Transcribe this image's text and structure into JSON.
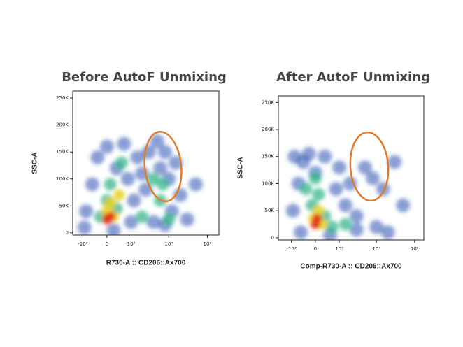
{
  "chart_data": [
    {
      "type": "scatter",
      "title": "Before AutoF Unmixing",
      "xlabel": "R730-A :: CD206::Ax700",
      "ylabel": "SSC-A",
      "xscale": "biexponential",
      "xlim": [
        -1900,
        200000
      ],
      "ylim": [
        -4000,
        263000
      ],
      "xticks": [
        {
          "value": -1000,
          "label": "-10³"
        },
        0,
        {
          "value": 1000,
          "label": "10³"
        },
        {
          "value": 10000,
          "label": "10⁴"
        },
        {
          "value": 100000,
          "label": "10⁵"
        }
      ],
      "yticks": [
        0,
        {
          "value": 50000,
          "label": "50K"
        },
        {
          "value": 100000,
          "label": "100K"
        },
        {
          "value": 150000,
          "label": "150K"
        },
        {
          "value": 200000,
          "label": "200K"
        },
        {
          "value": 250000,
          "label": "250K"
        }
      ],
      "gate_color": "#e07b2e",
      "series": [
        {
          "color": "#2a4fb0",
          "x": [
            -800,
            -500,
            -300,
            0,
            300,
            600,
            800,
            1500,
            1200,
            2500,
            3000,
            5000,
            6000,
            8000,
            10000,
            15000,
            20000,
            12000,
            30000,
            4000,
            8000,
            -900,
            200,
            50000,
            2000,
            1000
          ],
          "y": [
            40000,
            90000,
            140000,
            160000,
            120000,
            165000,
            100000,
            140000,
            60000,
            80000,
            150000,
            170000,
            120000,
            150000,
            100000,
            130000,
            70000,
            40000,
            25000,
            20000,
            15000,
            10000,
            5000,
            90000,
            110000,
            20000
          ]
        },
        {
          "color": "#35b58a",
          "x": [
            0,
            100,
            300,
            500,
            4000,
            7000,
            2000,
            6000,
            10000,
            -200
          ],
          "y": [
            60000,
            90000,
            45000,
            130000,
            100000,
            90000,
            30000,
            60000,
            25000,
            30000
          ]
        },
        {
          "color": "#e8d21e",
          "x": [
            0,
            100,
            200,
            400
          ],
          "y": [
            40000,
            55000,
            30000,
            70000
          ]
        },
        {
          "color": "#e33a1f",
          "x": [
            0,
            100
          ],
          "y": [
            25000,
            30000
          ]
        }
      ]
    },
    {
      "type": "scatter",
      "title": "After AutoF Unmixing",
      "xlabel": "Comp-R730-A :: CD206::Ax700",
      "ylabel": "SSC-A",
      "xscale": "biexponential",
      "xlim": [
        -2300,
        175000
      ],
      "ylim": [
        -4000,
        262000
      ],
      "xticks": [
        {
          "value": -1000,
          "label": "-10³"
        },
        0,
        {
          "value": 1000,
          "label": "10³"
        },
        {
          "value": 10000,
          "label": "10⁴"
        },
        {
          "value": 100000,
          "label": "10⁵"
        }
      ],
      "yticks": [
        0,
        {
          "value": 50000,
          "label": "50K"
        },
        {
          "value": 100000,
          "label": "100K"
        },
        {
          "value": 150000,
          "label": "150K"
        },
        {
          "value": 200000,
          "label": "200K"
        },
        {
          "value": 250000,
          "label": "250K"
        }
      ],
      "gate_color": "#e07b2e",
      "series": [
        {
          "color": "#2a4fb0",
          "x": [
            -900,
            -600,
            -400,
            -200,
            0,
            300,
            800,
            1500,
            3000,
            5000,
            8000,
            15000,
            30000,
            50000,
            10000,
            3000,
            20000,
            -500,
            500,
            2000,
            1000,
            -800
          ],
          "y": [
            50000,
            100000,
            140000,
            155000,
            120000,
            150000,
            90000,
            60000,
            40000,
            130000,
            110000,
            90000,
            140000,
            60000,
            20000,
            15000,
            10000,
            10000,
            5000,
            100000,
            130000,
            150000
          ]
        },
        {
          "color": "#35b58a",
          "x": [
            -100,
            100,
            300,
            -300,
            600,
            1500,
            0
          ],
          "y": [
            60000,
            80000,
            40000,
            90000,
            20000,
            25000,
            110000
          ]
        },
        {
          "color": "#e8d21e",
          "x": [
            -50,
            100,
            200
          ],
          "y": [
            35000,
            50000,
            25000
          ]
        },
        {
          "color": "#e33a1f",
          "x": [
            0,
            50
          ],
          "y": [
            25000,
            35000
          ]
        }
      ]
    }
  ]
}
